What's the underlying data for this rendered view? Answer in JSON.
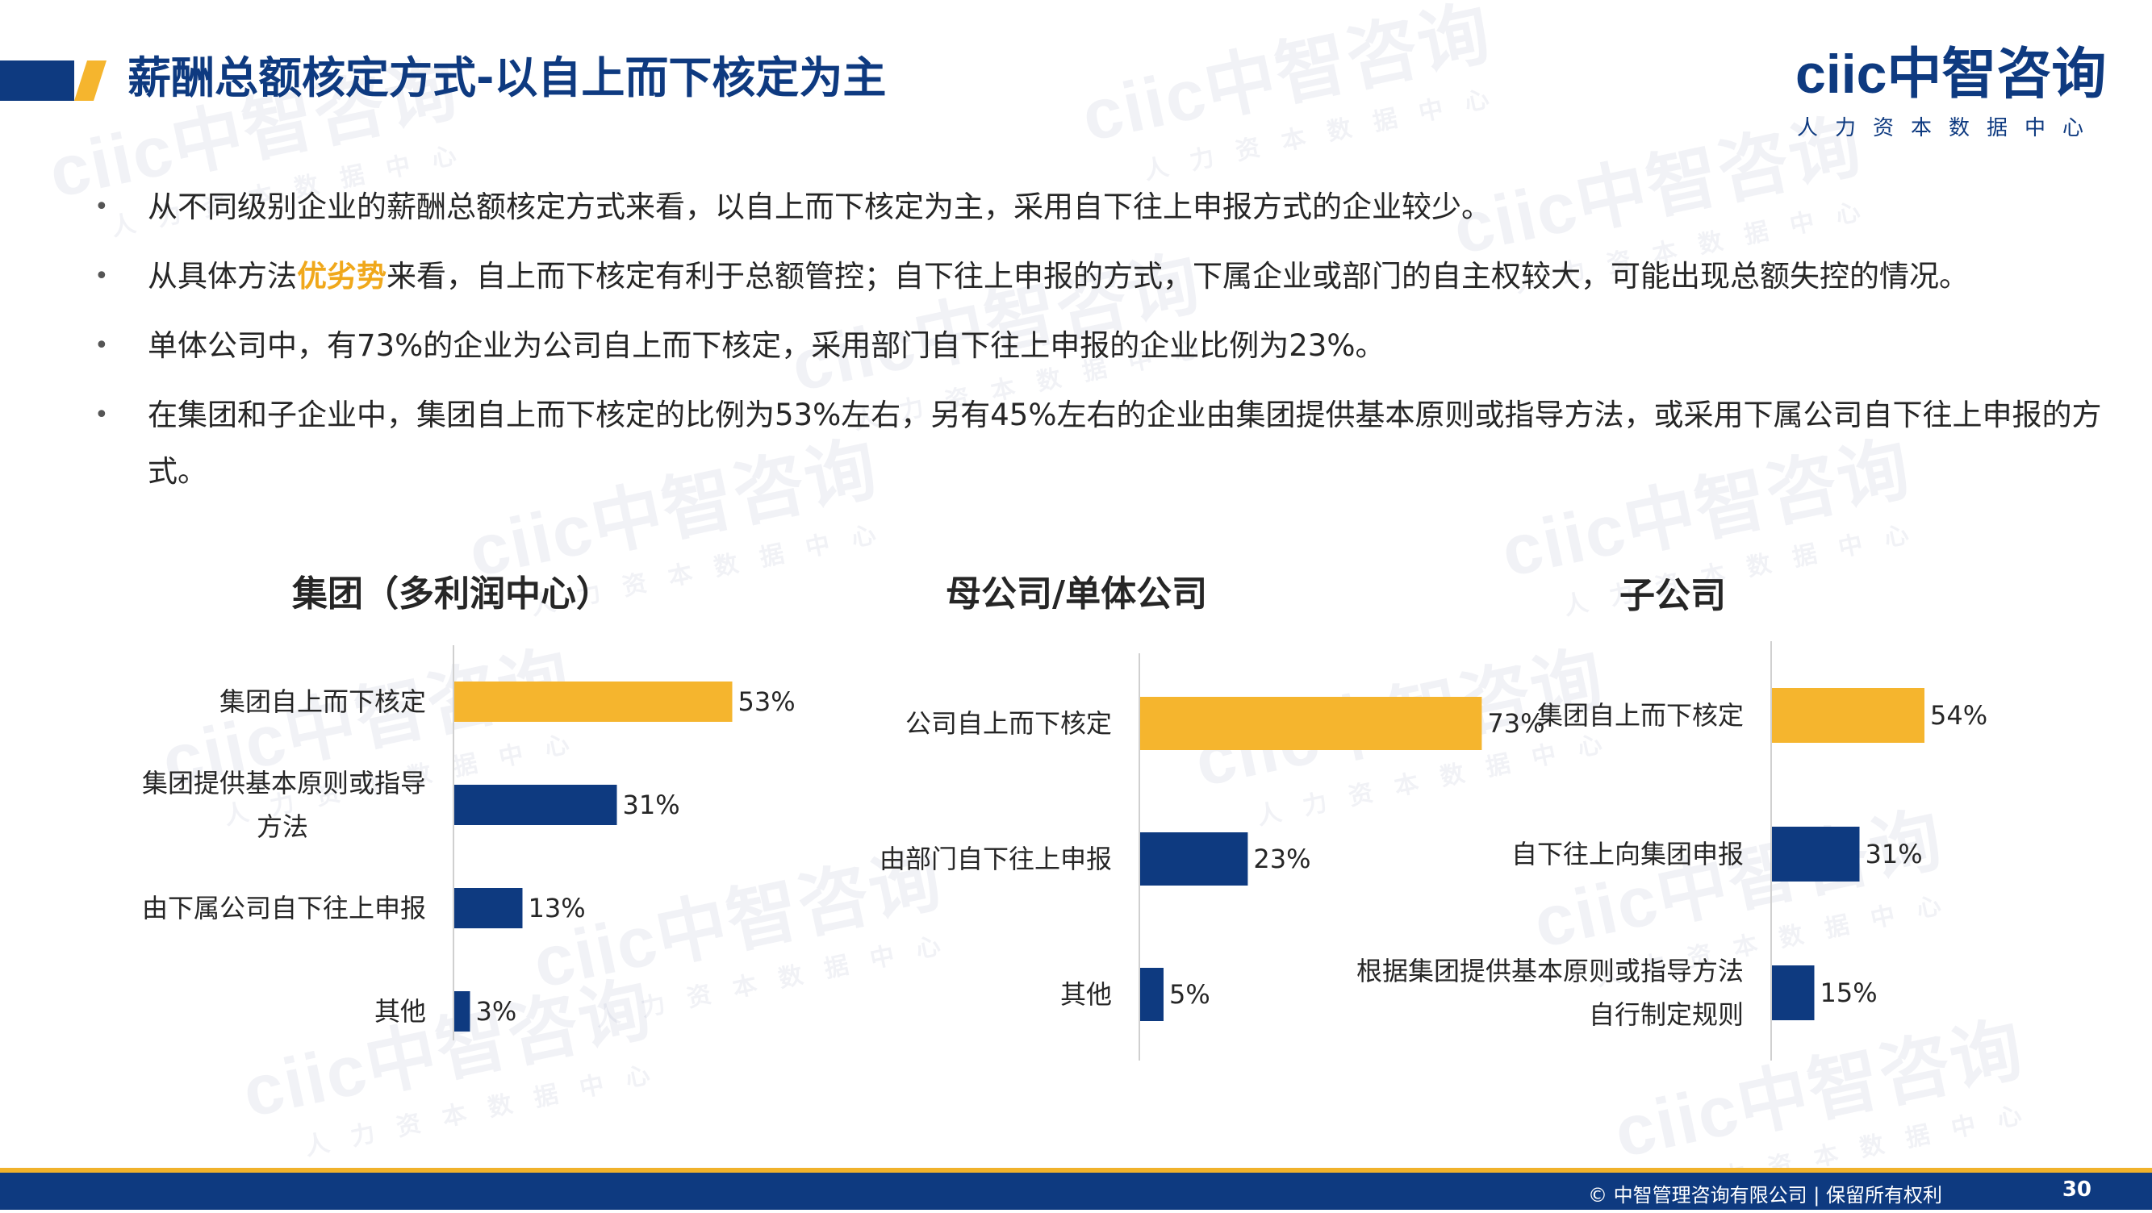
{
  "header": {
    "title": "薪酬总额核定方式-以自上而下核定为主",
    "logo_main": "ciic中智咨询",
    "logo_sub": "人力资本数据中心",
    "colors": {
      "navy": "#0e3a80",
      "gold": "#f5b52e"
    }
  },
  "watermark": {
    "main": "ciic中智咨询",
    "sub": "人力资本数据中心"
  },
  "bullets": [
    {
      "text": "从不同级别企业的薪酬总额核定方式来看，以自上而下核定为主，采用自下往上申报方式的企业较少。"
    },
    {
      "before": "从具体方法",
      "highlight": "优劣势",
      "after": "来看，自上而下核定有利于总额管控；自下往上申报的方式，下属企业或部门的自主权较大，可能出现总额失控的情况。"
    },
    {
      "text": "单体公司中，有73%的企业为公司自上而下核定，采用部门自下往上申报的企业比例为23%。"
    },
    {
      "text": "在集团和子企业中，集团自上而下核定的比例为53%左右，另有45%左右的企业由集团提供基本原则或指导方法，或采用下属公司自下往上申报的方式。"
    }
  ],
  "chart_data": [
    {
      "type": "bar",
      "orientation": "horizontal",
      "title": "集团（多利润中心）",
      "categories": [
        "集团自上而下核定",
        "集团提供基本原则或指导方法",
        "由下属公司自下往上申报",
        "其他"
      ],
      "category_lines": [
        [
          "集团自上而下核定"
        ],
        [
          "集团提供基本原则或指导",
          "方法"
        ],
        [
          "由下属公司自下往上申报"
        ],
        [
          "其他"
        ]
      ],
      "values": [
        53,
        31,
        13,
        3
      ],
      "value_labels": [
        "53%",
        "31%",
        "13%",
        "3%"
      ],
      "bar_colors": [
        "#f5b52e",
        "#0e3a80",
        "#0e3a80",
        "#0e3a80"
      ],
      "xlim": [
        0,
        100
      ]
    },
    {
      "type": "bar",
      "orientation": "horizontal",
      "title": "母公司/单体公司",
      "categories": [
        "公司自上而下核定",
        "由部门自下往上申报",
        "其他"
      ],
      "category_lines": [
        [
          "公司自上而下核定"
        ],
        [
          "由部门自下往上申报"
        ],
        [
          "其他"
        ]
      ],
      "values": [
        73,
        23,
        5
      ],
      "value_labels": [
        "73%",
        "23%",
        "5%"
      ],
      "bar_colors": [
        "#f5b52e",
        "#0e3a80",
        "#0e3a80"
      ],
      "xlim": [
        0,
        100
      ]
    },
    {
      "type": "bar",
      "orientation": "horizontal",
      "title": "子公司",
      "categories": [
        "集团自上而下核定",
        "自下往上向集团申报",
        "根据集团提供基本原则或指导方法自行制定规则"
      ],
      "category_lines": [
        [
          "集团自上而下核定"
        ],
        [
          "自下往上向集团申报"
        ],
        [
          "根据集团提供基本原则或指导方法",
          "自行制定规则"
        ]
      ],
      "values": [
        54,
        31,
        15
      ],
      "value_labels": [
        "54%",
        "31%",
        "15%"
      ],
      "bar_colors": [
        "#f5b52e",
        "#0e3a80",
        "#0e3a80"
      ],
      "xlim": [
        0,
        100
      ]
    }
  ],
  "footer": {
    "copyright": "© 中智管理咨询有限公司 | 保留所有权利",
    "page_number": "30"
  }
}
